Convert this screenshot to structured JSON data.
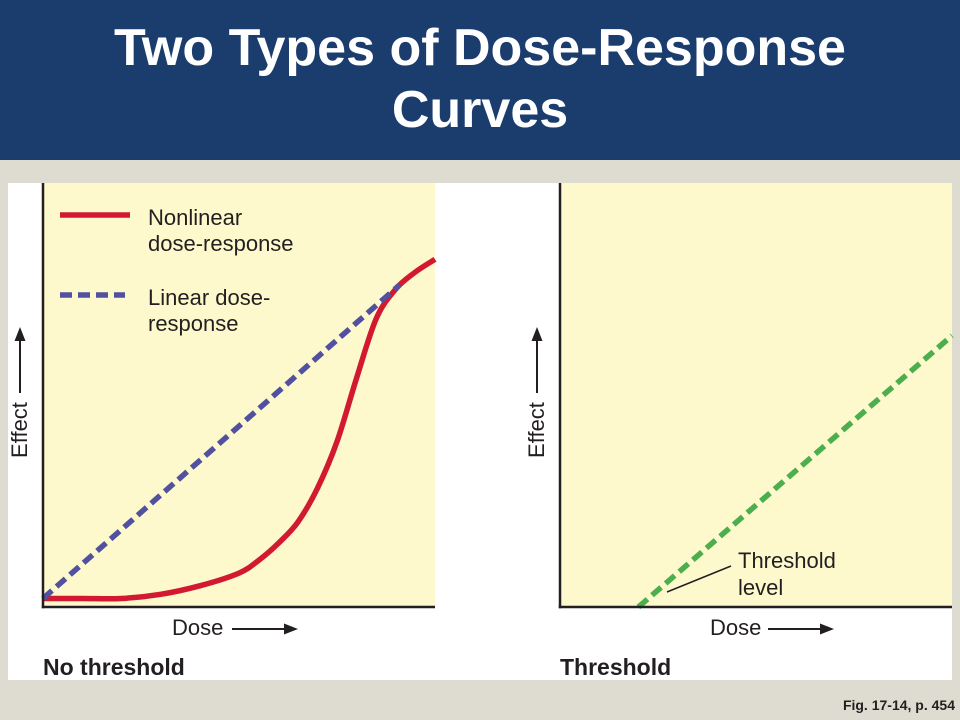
{
  "slide": {
    "title": "Two Types of Dose-Response Curves",
    "footer": "Fig. 17-14, p. 454"
  },
  "theme": {
    "banner_color": "#1b3d6e",
    "title_color": "#ffffff",
    "page_background": "#dedbd1",
    "figure_background": "#ffffff",
    "plot_background": "#fdf9cc",
    "ink_color": "#231f20"
  },
  "chart_data": [
    {
      "type": "line",
      "title": "No threshold",
      "xlabel": "Dose",
      "ylabel": "Effect",
      "xlim": [
        0,
        100
      ],
      "ylim": [
        0,
        100
      ],
      "grid": false,
      "legend": "top-left",
      "series": [
        {
          "name": "Nonlinear dose-response",
          "color": "#d2192f",
          "linestyle": "solid",
          "x": [
            0,
            10,
            20,
            30,
            40,
            50,
            55,
            60,
            65,
            70,
            75,
            80,
            85,
            90,
            95,
            100
          ],
          "y": [
            2,
            2,
            2,
            3,
            5,
            8,
            11,
            15,
            20,
            28,
            39,
            54,
            68,
            75,
            79,
            82
          ]
        },
        {
          "name": "Linear dose-response",
          "color": "#51519f",
          "linestyle": "dashed",
          "x": [
            0,
            91
          ],
          "y": [
            2,
            76
          ]
        }
      ]
    },
    {
      "type": "line",
      "title": "Threshold",
      "xlabel": "Dose",
      "ylabel": "Effect",
      "xlim": [
        0,
        100
      ],
      "ylim": [
        0,
        100
      ],
      "grid": false,
      "series": [
        {
          "color": "#4cae4c",
          "linestyle": "dashed",
          "x": [
            20,
            100
          ],
          "y": [
            0,
            64
          ]
        }
      ],
      "annotations": [
        {
          "text": "Threshold level"
        }
      ]
    }
  ]
}
